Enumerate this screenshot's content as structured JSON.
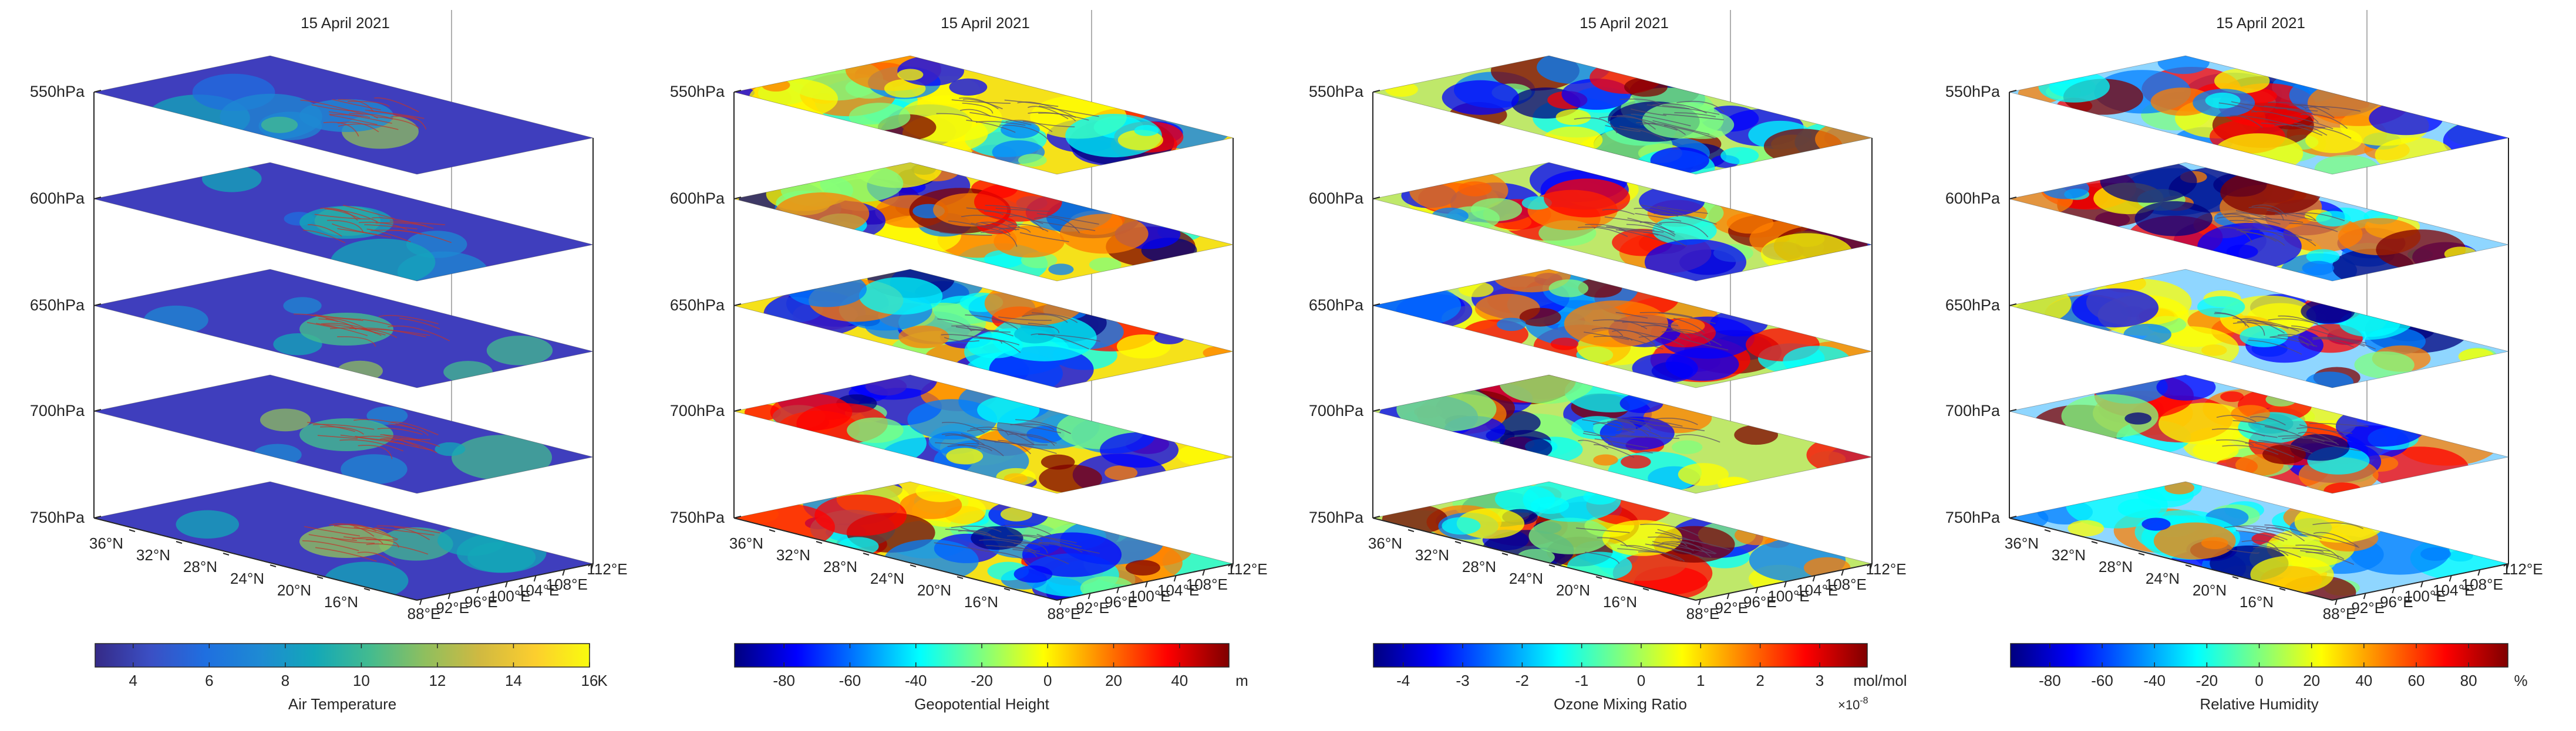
{
  "chart_data": [
    {
      "type": "heatmap",
      "title": "15 April 2021",
      "levels": [
        "550hPa",
        "600hPa",
        "650hPa",
        "700hPa",
        "750hPa"
      ],
      "lat_ticks": [
        "36°N",
        "32°N",
        "28°N",
        "24°N",
        "20°N",
        "16°N"
      ],
      "lon_ticks": [
        "88°E",
        "92°E",
        "96°E",
        "100°E",
        "104°E",
        "108°E",
        "112°E"
      ],
      "colorbar": {
        "label": "Air Temperature",
        "unit": "K",
        "ticks": [
          "4",
          "6",
          "8",
          "10",
          "12",
          "14",
          "16"
        ],
        "range": [
          3,
          16
        ],
        "colormap": "parula"
      }
    },
    {
      "type": "heatmap",
      "title": "15 April 2021",
      "levels": [
        "550hPa",
        "600hPa",
        "650hPa",
        "700hPa",
        "750hPa"
      ],
      "lat_ticks": [
        "36°N",
        "32°N",
        "28°N",
        "24°N",
        "20°N",
        "16°N"
      ],
      "lon_ticks": [
        "88°E",
        "92°E",
        "96°E",
        "100°E",
        "104°E",
        "108°E",
        "112°E"
      ],
      "colorbar": {
        "label": "Geopotential Height",
        "unit": "m",
        "ticks": [
          "-80",
          "-60",
          "-40",
          "-20",
          "0",
          "20",
          "40"
        ],
        "range": [
          -95,
          55
        ],
        "colormap": "jet"
      }
    },
    {
      "type": "heatmap",
      "title": "15 April 2021",
      "levels": [
        "550hPa",
        "600hPa",
        "650hPa",
        "700hPa",
        "750hPa"
      ],
      "lat_ticks": [
        "36°N",
        "32°N",
        "28°N",
        "24°N",
        "20°N",
        "16°N"
      ],
      "lon_ticks": [
        "88°E",
        "92°E",
        "96°E",
        "100°E",
        "104°E",
        "108°E",
        "112°E"
      ],
      "colorbar": {
        "label": "Ozone Mixing Ratio",
        "unit": "mol/mol",
        "ticks": [
          "-4",
          "-3",
          "-2",
          "-1",
          "0",
          "1",
          "2",
          "3"
        ],
        "range": [
          -4.5,
          3.8
        ],
        "colormap": "jet",
        "exponent_base": "×10",
        "exponent": "-8"
      }
    },
    {
      "type": "heatmap",
      "title": "15 April 2021",
      "levels": [
        "550hPa",
        "600hPa",
        "650hPa",
        "700hPa",
        "750hPa"
      ],
      "lat_ticks": [
        "36°N",
        "32°N",
        "28°N",
        "24°N",
        "20°N",
        "16°N"
      ],
      "lon_ticks": [
        "88°E",
        "92°E",
        "96°E",
        "100°E",
        "104°E",
        "108°E",
        "112°E"
      ],
      "colorbar": {
        "label": "Relative Humidity",
        "unit": "%",
        "ticks": [
          "-80",
          "-60",
          "-40",
          "-20",
          "0",
          "20",
          "40",
          "60",
          "80"
        ],
        "range": [
          -95,
          95
        ],
        "colormap": "jet"
      }
    }
  ]
}
